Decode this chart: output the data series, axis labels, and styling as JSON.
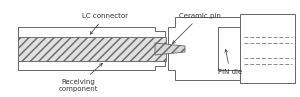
{
  "line_color": "#666666",
  "text_color": "#333333",
  "hatch_color": "#999999",
  "bg_color": "white",
  "labels": {
    "lc_connector": "LC connector",
    "receiving": "Receiving\ncomponent",
    "ceramic_pin": "Ceramic pin",
    "pin_die": "PIN die"
  },
  "figsize": [
    3.0,
    0.97
  ],
  "dpi": 100
}
